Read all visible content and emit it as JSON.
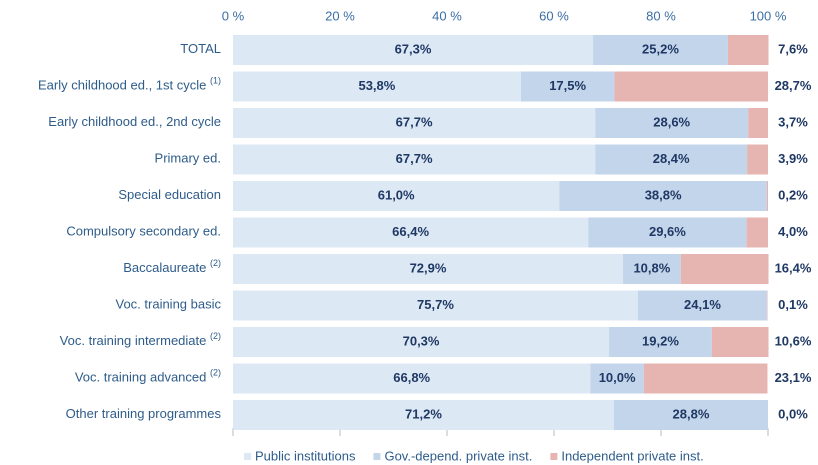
{
  "chart_data": {
    "type": "stacked-bar-horizontal",
    "categories": [
      "TOTAL",
      "Early childhood ed., 1st cycle",
      "Early childhood ed., 2nd cycle",
      "Primary ed.",
      "Special education",
      "Compulsory secondary ed.",
      "Baccalaureate",
      "Voc. training basic",
      "Voc. training intermediate",
      "Voc. training advanced",
      "Other training programmes"
    ],
    "category_notes": [
      null,
      "(1)",
      null,
      null,
      null,
      null,
      "(2)",
      null,
      "(2)",
      "(2)",
      null
    ],
    "series": [
      {
        "name": "Public institutions",
        "color": "#dce8f4",
        "values": [
          67.3,
          53.8,
          67.7,
          67.7,
          61.0,
          66.4,
          72.9,
          75.7,
          70.3,
          66.8,
          71.2
        ],
        "value_labels": [
          "67,3%",
          "53,8%",
          "67,7%",
          "67,7%",
          "61,0%",
          "66,4%",
          "72,9%",
          "75,7%",
          "70,3%",
          "66,8%",
          "71,2%"
        ]
      },
      {
        "name": "Gov.-depend. private inst.",
        "color": "#c3d5ea",
        "values": [
          25.2,
          17.5,
          28.6,
          28.4,
          38.8,
          29.6,
          10.8,
          24.1,
          19.2,
          10.0,
          28.8
        ],
        "value_labels": [
          "25,2%",
          "17,5%",
          "28,6%",
          "28,4%",
          "38,8%",
          "29,6%",
          "10,8%",
          "24,1%",
          "19,2%",
          "10,0%",
          "28,8%"
        ]
      },
      {
        "name": "Independent private inst.",
        "color": "#e6b5b2",
        "values": [
          7.6,
          28.7,
          3.7,
          3.9,
          0.2,
          4.0,
          16.4,
          0.1,
          10.6,
          23.1,
          0.0
        ],
        "value_labels": [
          "7,6%",
          "28,7%",
          "3,7%",
          "3,9%",
          "0,2%",
          "4,0%",
          "16,4%",
          "0,1%",
          "10,6%",
          "23,1%",
          "0,0%"
        ]
      }
    ],
    "xlim": [
      0,
      100
    ],
    "xticks": [
      {
        "value": 0,
        "label": "0 %"
      },
      {
        "value": 20,
        "label": "20 %"
      },
      {
        "value": 40,
        "label": "40 %"
      },
      {
        "value": 60,
        "label": "60 %"
      },
      {
        "value": 80,
        "label": "80 %"
      },
      {
        "value": 100,
        "label": "100 %"
      }
    ],
    "legend": "bottom"
  }
}
